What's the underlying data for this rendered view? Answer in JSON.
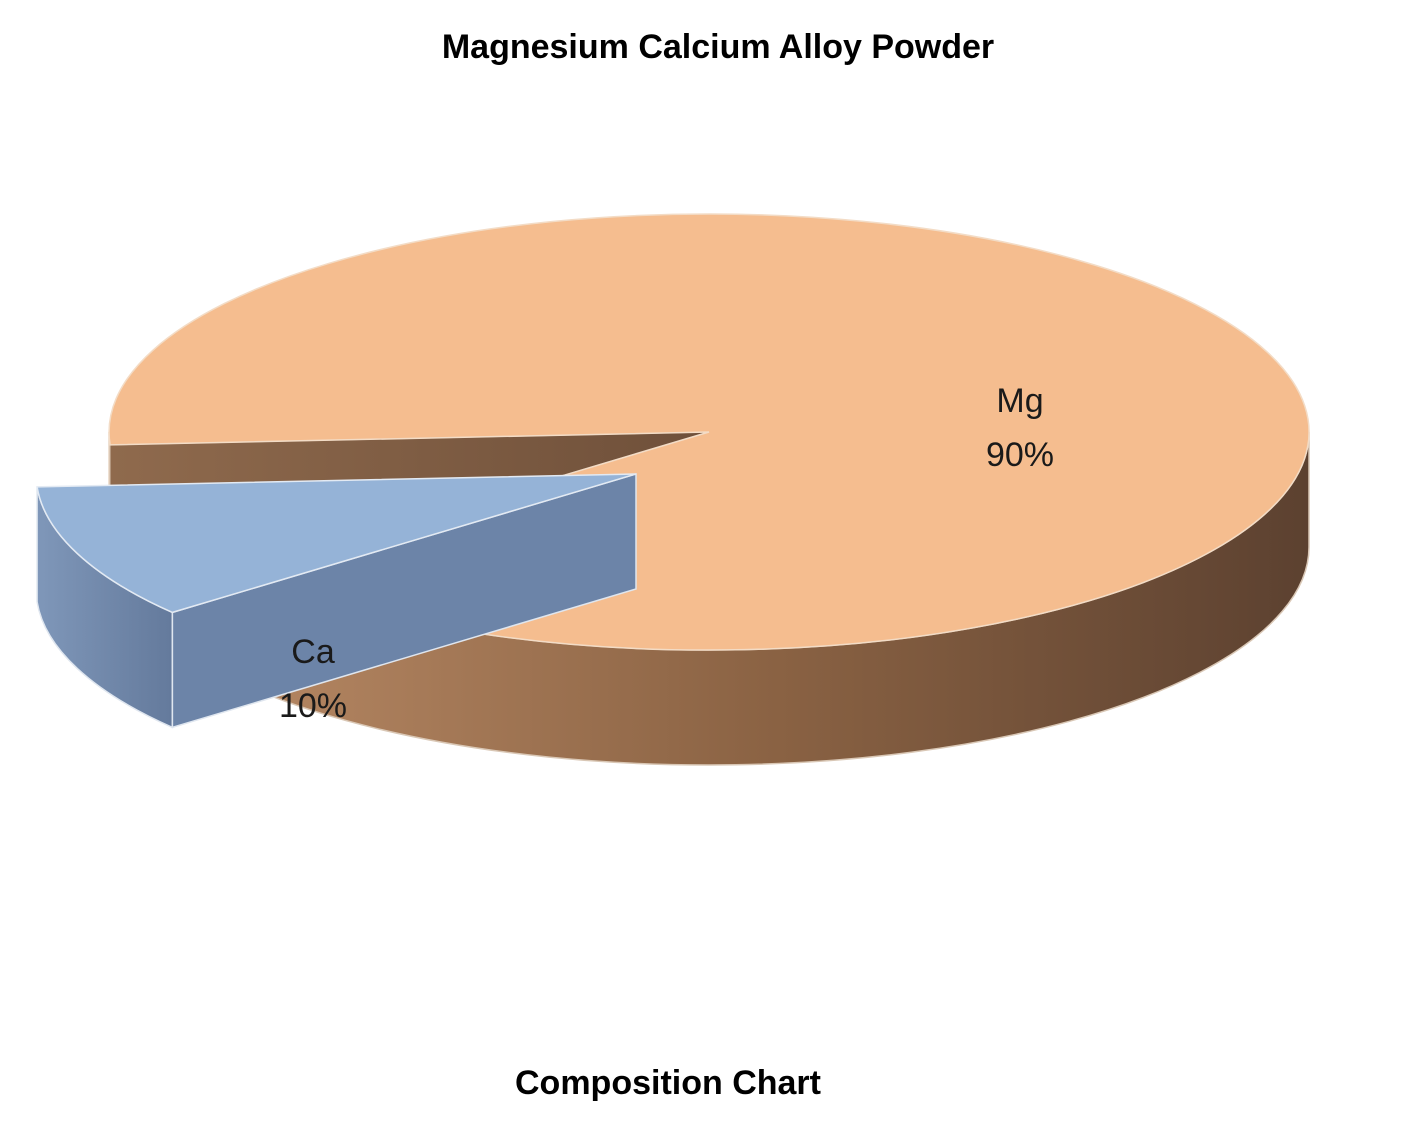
{
  "chart_data": {
    "type": "pie",
    "title": "Magnesium Calcium Alloy Powder",
    "caption": "Composition Chart",
    "categories": [
      "Mg",
      "Ca"
    ],
    "values": [
      90,
      10
    ],
    "labels": [
      "Mg\n90%",
      "Ca\n10%"
    ],
    "percent_labels": [
      "90%",
      "10%"
    ],
    "colors": {
      "Mg": "#f5bd8f",
      "Ca": "#95b3d7"
    },
    "style": "3d-exploded"
  }
}
